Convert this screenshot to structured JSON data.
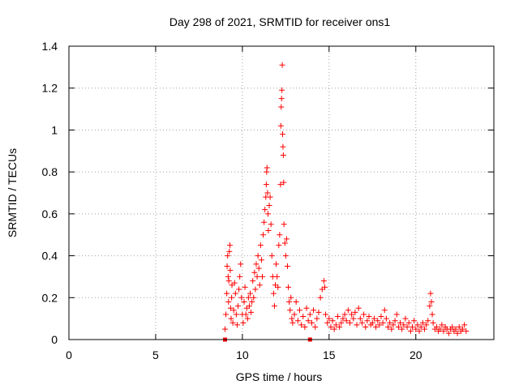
{
  "chart_data": {
    "type": "scatter",
    "title": "Day 298 of 2021, SRMTID for receiver ons1",
    "xlabel": "GPS time / hours",
    "ylabel": "SRMTID / TECUs",
    "xlim": [
      0,
      24.5
    ],
    "ylim": [
      0,
      1.4
    ],
    "x_ticks": [
      0,
      5,
      10,
      15,
      20
    ],
    "y_ticks": [
      0,
      0.2,
      0.4,
      0.6,
      0.8,
      1,
      1.2,
      1.4
    ],
    "x_tick_labels": [
      "0",
      "5",
      "10",
      "15",
      "20"
    ],
    "y_tick_labels": [
      "0",
      "0.2",
      "0.4",
      "0.6",
      "0.8",
      "1",
      "1.2",
      "1.4"
    ],
    "grid": true,
    "legend": "none",
    "series_color": "#ff0000",
    "marker": "plus",
    "gap_markers_x": [
      9.0,
      13.9
    ],
    "points": [
      [
        9.0,
        0.05
      ],
      [
        9.05,
        0.12
      ],
      [
        9.1,
        0.22
      ],
      [
        9.12,
        0.35
      ],
      [
        9.15,
        0.4
      ],
      [
        9.18,
        0.3
      ],
      [
        9.2,
        0.18
      ],
      [
        9.22,
        0.28
      ],
      [
        9.25,
        0.42
      ],
      [
        9.28,
        0.45
      ],
      [
        9.3,
        0.33
      ],
      [
        9.32,
        0.15
      ],
      [
        9.35,
        0.1
      ],
      [
        9.38,
        0.2
      ],
      [
        9.4,
        0.26
      ],
      [
        9.45,
        0.08
      ],
      [
        9.5,
        0.14
      ],
      [
        9.55,
        0.27
      ],
      [
        9.6,
        0.22
      ],
      [
        9.65,
        0.12
      ],
      [
        9.7,
        0.07
      ],
      [
        9.75,
        0.16
      ],
      [
        9.8,
        0.24
      ],
      [
        9.85,
        0.3
      ],
      [
        9.9,
        0.36
      ],
      [
        9.95,
        0.2
      ],
      [
        10.0,
        0.12
      ],
      [
        10.05,
        0.08
      ],
      [
        10.1,
        0.18
      ],
      [
        10.15,
        0.25
      ],
      [
        10.2,
        0.12
      ],
      [
        10.25,
        0.15
      ],
      [
        10.3,
        0.1
      ],
      [
        10.35,
        0.2
      ],
      [
        10.4,
        0.16
      ],
      [
        10.45,
        0.22
      ],
      [
        10.5,
        0.13
      ],
      [
        10.55,
        0.18
      ],
      [
        10.6,
        0.28
      ],
      [
        10.65,
        0.2
      ],
      [
        10.7,
        0.32
      ],
      [
        10.75,
        0.24
      ],
      [
        10.8,
        0.36
      ],
      [
        10.85,
        0.3
      ],
      [
        10.9,
        0.4
      ],
      [
        10.95,
        0.34
      ],
      [
        11.0,
        0.26
      ],
      [
        11.05,
        0.45
      ],
      [
        11.1,
        0.38
      ],
      [
        11.15,
        0.3
      ],
      [
        11.2,
        0.5
      ],
      [
        11.25,
        0.56
      ],
      [
        11.3,
        0.62
      ],
      [
        11.35,
        0.68
      ],
      [
        11.38,
        0.74
      ],
      [
        11.4,
        0.8
      ],
      [
        11.42,
        0.82
      ],
      [
        11.45,
        0.7
      ],
      [
        11.48,
        0.6
      ],
      [
        11.5,
        0.52
      ],
      [
        11.55,
        0.64
      ],
      [
        11.6,
        0.68
      ],
      [
        11.65,
        0.55
      ],
      [
        11.7,
        0.4
      ],
      [
        11.75,
        0.3
      ],
      [
        11.8,
        0.22
      ],
      [
        11.85,
        0.16
      ],
      [
        11.9,
        0.26
      ],
      [
        11.95,
        0.36
      ],
      [
        12.0,
        0.3
      ],
      [
        12.05,
        0.25
      ],
      [
        12.1,
        0.45
      ],
      [
        12.15,
        0.5
      ],
      [
        12.2,
        0.74
      ],
      [
        12.22,
        1.02
      ],
      [
        12.24,
        1.11
      ],
      [
        12.26,
        1.15
      ],
      [
        12.28,
        1.19
      ],
      [
        12.3,
        1.31
      ],
      [
        12.32,
        0.98
      ],
      [
        12.34,
        0.92
      ],
      [
        12.36,
        0.88
      ],
      [
        12.38,
        0.75
      ],
      [
        12.4,
        0.55
      ],
      [
        12.45,
        0.46
      ],
      [
        12.5,
        0.4
      ],
      [
        12.55,
        0.48
      ],
      [
        12.6,
        0.35
      ],
      [
        12.65,
        0.25
      ],
      [
        12.7,
        0.18
      ],
      [
        12.75,
        0.14
      ],
      [
        12.8,
        0.2
      ],
      [
        12.85,
        0.1
      ],
      [
        12.9,
        0.08
      ],
      [
        13.0,
        0.12
      ],
      [
        13.1,
        0.18
      ],
      [
        13.2,
        0.09
      ],
      [
        13.3,
        0.14
      ],
      [
        13.4,
        0.07
      ],
      [
        13.5,
        0.11
      ],
      [
        13.6,
        0.06
      ],
      [
        13.7,
        0.15
      ],
      [
        13.8,
        0.09
      ],
      [
        13.9,
        0.12
      ],
      [
        14.0,
        0.08
      ],
      [
        14.1,
        0.14
      ],
      [
        14.2,
        0.06
      ],
      [
        14.3,
        0.1
      ],
      [
        14.4,
        0.13
      ],
      [
        14.5,
        0.2
      ],
      [
        14.6,
        0.24
      ],
      [
        14.7,
        0.28
      ],
      [
        14.75,
        0.25
      ],
      [
        14.8,
        0.12
      ],
      [
        14.9,
        0.08
      ],
      [
        15.0,
        0.1
      ],
      [
        15.1,
        0.06
      ],
      [
        15.2,
        0.09
      ],
      [
        15.3,
        0.05
      ],
      [
        15.4,
        0.07
      ],
      [
        15.5,
        0.11
      ],
      [
        15.6,
        0.06
      ],
      [
        15.7,
        0.08
      ],
      [
        15.8,
        0.1
      ],
      [
        15.9,
        0.12
      ],
      [
        16.0,
        0.09
      ],
      [
        16.1,
        0.14
      ],
      [
        16.2,
        0.08
      ],
      [
        16.3,
        0.12
      ],
      [
        16.4,
        0.1
      ],
      [
        16.5,
        0.13
      ],
      [
        16.6,
        0.07
      ],
      [
        16.7,
        0.15
      ],
      [
        16.8,
        0.1
      ],
      [
        16.9,
        0.08
      ],
      [
        17.0,
        0.12
      ],
      [
        17.1,
        0.06
      ],
      [
        17.2,
        0.09
      ],
      [
        17.3,
        0.11
      ],
      [
        17.4,
        0.07
      ],
      [
        17.5,
        0.08
      ],
      [
        17.6,
        0.1
      ],
      [
        17.7,
        0.06
      ],
      [
        17.8,
        0.09
      ],
      [
        17.9,
        0.07
      ],
      [
        18.0,
        0.11
      ],
      [
        18.1,
        0.08
      ],
      [
        18.2,
        0.14
      ],
      [
        18.3,
        0.1
      ],
      [
        18.4,
        0.06
      ],
      [
        18.5,
        0.08
      ],
      [
        18.6,
        0.05
      ],
      [
        18.7,
        0.07
      ],
      [
        18.8,
        0.09
      ],
      [
        18.9,
        0.12
      ],
      [
        19.0,
        0.06
      ],
      [
        19.1,
        0.08
      ],
      [
        19.2,
        0.05
      ],
      [
        19.3,
        0.07
      ],
      [
        19.4,
        0.1
      ],
      [
        19.5,
        0.06
      ],
      [
        19.6,
        0.08
      ],
      [
        19.7,
        0.04
      ],
      [
        19.8,
        0.06
      ],
      [
        19.9,
        0.09
      ],
      [
        20.0,
        0.05
      ],
      [
        20.1,
        0.07
      ],
      [
        20.2,
        0.04
      ],
      [
        20.3,
        0.06
      ],
      [
        20.4,
        0.08
      ],
      [
        20.5,
        0.05
      ],
      [
        20.6,
        0.07
      ],
      [
        20.7,
        0.09
      ],
      [
        20.8,
        0.16
      ],
      [
        20.85,
        0.22
      ],
      [
        20.9,
        0.18
      ],
      [
        20.95,
        0.12
      ],
      [
        21.0,
        0.08
      ],
      [
        21.1,
        0.05
      ],
      [
        21.2,
        0.06
      ],
      [
        21.3,
        0.04
      ],
      [
        21.4,
        0.05
      ],
      [
        21.5,
        0.07
      ],
      [
        21.6,
        0.04
      ],
      [
        21.7,
        0.06
      ],
      [
        21.8,
        0.05
      ],
      [
        21.9,
        0.03
      ],
      [
        22.0,
        0.05
      ],
      [
        22.1,
        0.06
      ],
      [
        22.2,
        0.04
      ],
      [
        22.3,
        0.05
      ],
      [
        22.4,
        0.03
      ],
      [
        22.5,
        0.06
      ],
      [
        22.6,
        0.04
      ],
      [
        22.7,
        0.05
      ],
      [
        22.8,
        0.07
      ],
      [
        22.9,
        0.04
      ]
    ]
  }
}
